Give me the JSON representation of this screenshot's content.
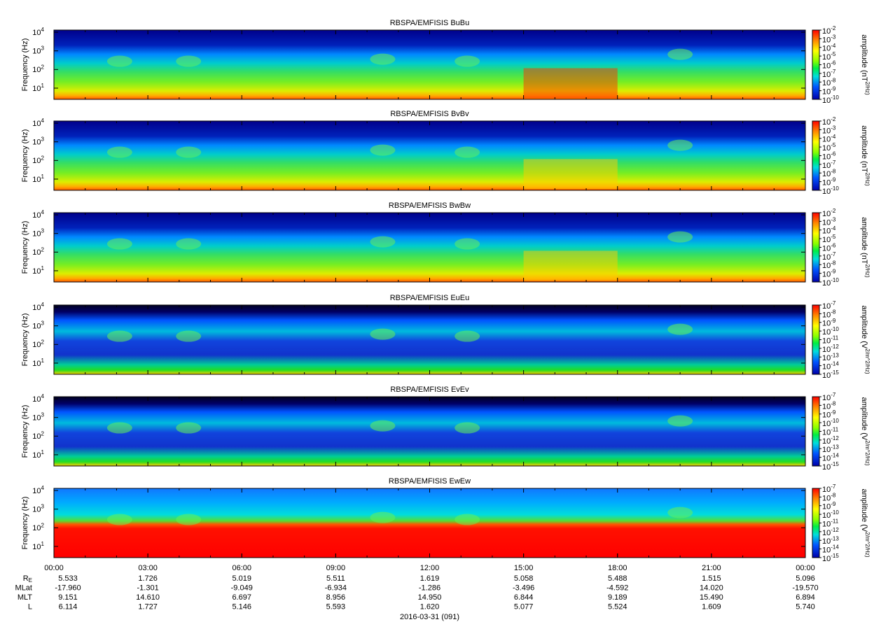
{
  "chart_data": [
    {
      "type": "spectrogram",
      "title": "RBSPA/EMFISIS  BuBu",
      "ylabel": "Frequency (Hz)",
      "ylim": [
        2.5,
        13000
      ],
      "yscale": "log",
      "yticks": [
        {
          "value": 10,
          "label": "10^1"
        },
        {
          "value": 100,
          "label": "10^2"
        },
        {
          "value": 1000,
          "label": "10^3"
        },
        {
          "value": 10000,
          "label": "10^4"
        }
      ],
      "zlabel": "amplitude (nT^2/Hz)",
      "zlim": [
        1e-10,
        0.01
      ],
      "zticks": [
        {
          "value": 0.01,
          "label": "10^-2"
        },
        {
          "value": 0.001,
          "label": "10^-3"
        },
        {
          "value": 0.0001,
          "label": "10^-4"
        },
        {
          "value": 1e-05,
          "label": "10^-5"
        },
        {
          "value": 1e-06,
          "label": "10^-6"
        },
        {
          "value": 1e-07,
          "label": "10^-7"
        },
        {
          "value": 1e-08,
          "label": "10^-8"
        },
        {
          "value": 1e-09,
          "label": "10^-9"
        },
        {
          "value": 1e-10,
          "label": "10^-10"
        }
      ]
    },
    {
      "type": "spectrogram",
      "title": "RBSPA/EMFISIS  BvBv",
      "ylabel": "Frequency (Hz)",
      "ylim": [
        2.5,
        13000
      ],
      "yscale": "log",
      "yticks": [
        {
          "value": 10,
          "label": "10^1"
        },
        {
          "value": 100,
          "label": "10^2"
        },
        {
          "value": 1000,
          "label": "10^3"
        },
        {
          "value": 10000,
          "label": "10^4"
        }
      ],
      "zlabel": "amplitude (nT^2/Hz)",
      "zlim": [
        1e-10,
        0.01
      ],
      "zticks": [
        {
          "value": 0.01,
          "label": "10^-2"
        },
        {
          "value": 0.001,
          "label": "10^-3"
        },
        {
          "value": 0.0001,
          "label": "10^-4"
        },
        {
          "value": 1e-05,
          "label": "10^-5"
        },
        {
          "value": 1e-06,
          "label": "10^-6"
        },
        {
          "value": 1e-07,
          "label": "10^-7"
        },
        {
          "value": 1e-08,
          "label": "10^-8"
        },
        {
          "value": 1e-09,
          "label": "10^-9"
        },
        {
          "value": 1e-10,
          "label": "10^-10"
        }
      ]
    },
    {
      "type": "spectrogram",
      "title": "RBSPA/EMFISIS  BwBw",
      "ylabel": "Frequency (Hz)",
      "ylim": [
        2.5,
        13000
      ],
      "yscale": "log",
      "yticks": [
        {
          "value": 10,
          "label": "10^1"
        },
        {
          "value": 100,
          "label": "10^2"
        },
        {
          "value": 1000,
          "label": "10^3"
        },
        {
          "value": 10000,
          "label": "10^4"
        }
      ],
      "zlabel": "amplitude (nT^2/Hz)",
      "zlim": [
        1e-10,
        0.01
      ],
      "zticks": [
        {
          "value": 0.01,
          "label": "10^-2"
        },
        {
          "value": 0.001,
          "label": "10^-3"
        },
        {
          "value": 0.0001,
          "label": "10^-4"
        },
        {
          "value": 1e-05,
          "label": "10^-5"
        },
        {
          "value": 1e-06,
          "label": "10^-6"
        },
        {
          "value": 1e-07,
          "label": "10^-7"
        },
        {
          "value": 1e-08,
          "label": "10^-8"
        },
        {
          "value": 1e-09,
          "label": "10^-9"
        },
        {
          "value": 1e-10,
          "label": "10^-10"
        }
      ]
    },
    {
      "type": "spectrogram",
      "title": "RBSPA/EMFISIS  EuEu",
      "ylabel": "Frequency (Hz)",
      "ylim": [
        2.5,
        13000
      ],
      "yscale": "log",
      "yticks": [
        {
          "value": 10,
          "label": "10^1"
        },
        {
          "value": 100,
          "label": "10^2"
        },
        {
          "value": 1000,
          "label": "10^3"
        },
        {
          "value": 10000,
          "label": "10^4"
        }
      ],
      "zlabel": "amplitude (V^2/m^2/Hz)",
      "zlim": [
        1e-15,
        1e-07
      ],
      "zticks": [
        {
          "value": 1e-07,
          "label": "10^-7"
        },
        {
          "value": 1e-08,
          "label": "10^-8"
        },
        {
          "value": 1e-09,
          "label": "10^-9"
        },
        {
          "value": 1e-10,
          "label": "10^-10"
        },
        {
          "value": 1e-11,
          "label": "10^-11"
        },
        {
          "value": 1e-12,
          "label": "10^-12"
        },
        {
          "value": 1e-13,
          "label": "10^-13"
        },
        {
          "value": 1e-14,
          "label": "10^-14"
        },
        {
          "value": 1e-15,
          "label": "10^-15"
        }
      ]
    },
    {
      "type": "spectrogram",
      "title": "RBSPA/EMFISIS  EvEv",
      "ylabel": "Frequency (Hz)",
      "ylim": [
        2.5,
        13000
      ],
      "yscale": "log",
      "yticks": [
        {
          "value": 10,
          "label": "10^1"
        },
        {
          "value": 100,
          "label": "10^2"
        },
        {
          "value": 1000,
          "label": "10^3"
        },
        {
          "value": 10000,
          "label": "10^4"
        }
      ],
      "zlabel": "amplitude (V^2/m^2/Hz)",
      "zlim": [
        1e-15,
        1e-07
      ],
      "zticks": [
        {
          "value": 1e-07,
          "label": "10^-7"
        },
        {
          "value": 1e-08,
          "label": "10^-8"
        },
        {
          "value": 1e-09,
          "label": "10^-9"
        },
        {
          "value": 1e-10,
          "label": "10^-10"
        },
        {
          "value": 1e-11,
          "label": "10^-11"
        },
        {
          "value": 1e-12,
          "label": "10^-12"
        },
        {
          "value": 1e-13,
          "label": "10^-13"
        },
        {
          "value": 1e-14,
          "label": "10^-14"
        },
        {
          "value": 1e-15,
          "label": "10^-15"
        }
      ]
    },
    {
      "type": "spectrogram",
      "title": "RBSPA/EMFISIS  EwEw",
      "ylabel": "Frequency (Hz)",
      "ylim": [
        2.5,
        13000
      ],
      "yscale": "log",
      "yticks": [
        {
          "value": 10,
          "label": "10^1"
        },
        {
          "value": 100,
          "label": "10^2"
        },
        {
          "value": 1000,
          "label": "10^3"
        },
        {
          "value": 10000,
          "label": "10^4"
        }
      ],
      "zlabel": "amplitude (V^2/m^2/Hz)",
      "zlim": [
        1e-15,
        1e-07
      ],
      "zticks": [
        {
          "value": 1e-07,
          "label": "10^-7"
        },
        {
          "value": 1e-08,
          "label": "10^-8"
        },
        {
          "value": 1e-09,
          "label": "10^-9"
        },
        {
          "value": 1e-10,
          "label": "10^-10"
        },
        {
          "value": 1e-11,
          "label": "10^-11"
        },
        {
          "value": 1e-12,
          "label": "10^-12"
        },
        {
          "value": 1e-13,
          "label": "10^-13"
        },
        {
          "value": 1e-14,
          "label": "10^-14"
        },
        {
          "value": 1e-15,
          "label": "10^-15"
        }
      ],
      "xlim": [
        0,
        24
      ],
      "xticks": [
        {
          "value": 0,
          "label": "00:00"
        },
        {
          "value": 3,
          "label": "03:00"
        },
        {
          "value": 6,
          "label": "06:00"
        },
        {
          "value": 9,
          "label": "09:00"
        },
        {
          "value": 12,
          "label": "12:00"
        },
        {
          "value": 15,
          "label": "15:00"
        },
        {
          "value": 18,
          "label": "18:00"
        },
        {
          "value": 21,
          "label": "21:00"
        },
        {
          "value": 24,
          "label": "00:00"
        }
      ],
      "xlabel": "2016-03-31 (091)"
    }
  ],
  "ephemeris": [
    {
      "label": "R_E",
      "values": [
        "5.533",
        "1.726",
        "5.019",
        "5.511",
        "1.619",
        "5.058",
        "5.488",
        "1.515",
        "5.096"
      ]
    },
    {
      "label": "MLat",
      "values": [
        "-17.960",
        "-1.301",
        "-9.049",
        "-6.934",
        "-1.286",
        "-3.496",
        "-4.592",
        "14.020",
        "-19.570"
      ]
    },
    {
      "label": "MLT",
      "values": [
        "9.151",
        "14.610",
        "6.697",
        "8.956",
        "14.950",
        "6.844",
        "9.189",
        "15.490",
        "6.894"
      ]
    },
    {
      "label": "L",
      "values": [
        "6.114",
        "1.727",
        "5.146",
        "5.593",
        "1.620",
        "5.077",
        "5.524",
        "1.609",
        "5.740"
      ]
    }
  ]
}
